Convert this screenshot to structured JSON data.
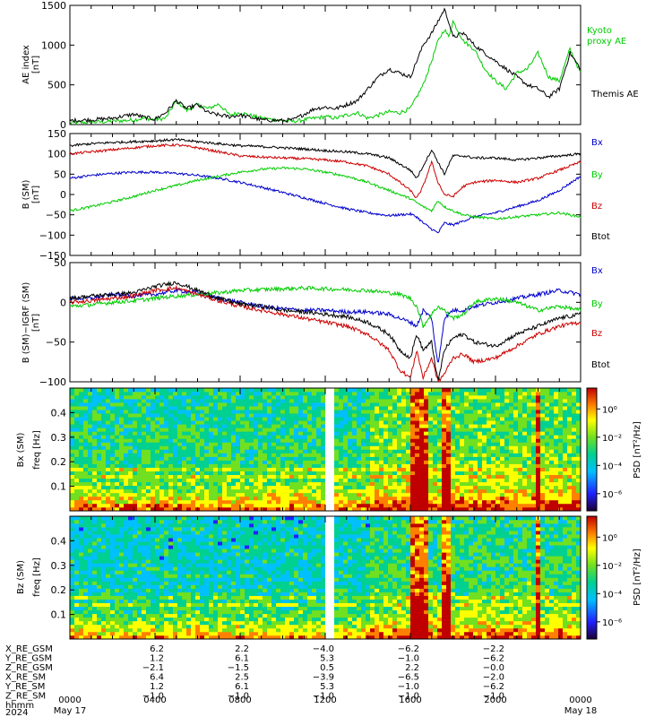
{
  "chart_data": [
    {
      "type": "line",
      "panel": "ae",
      "ylabel": [
        "AE index",
        "[nT]"
      ],
      "ylim": [
        0,
        1500
      ],
      "yticks": [
        0,
        500,
        1000,
        1500
      ],
      "xlim_hours": [
        0,
        24
      ],
      "series": [
        {
          "name": "Kyoto proxy AE",
          "color": "#00cc00",
          "x": [
            0,
            1,
            2,
            3,
            3.5,
            4,
            4.5,
            5,
            5.5,
            6,
            6.5,
            7,
            7.5,
            8,
            9,
            10,
            10.5,
            11,
            11.5,
            12,
            12.5,
            13,
            13.5,
            14,
            14.5,
            15,
            15.5,
            16,
            16.3,
            16.6,
            17,
            17.3,
            17.6,
            17.8,
            18,
            18.5,
            19,
            19.5,
            20,
            20.5,
            21,
            21.5,
            22,
            22.5,
            23,
            23.5,
            24
          ],
          "y": [
            20,
            30,
            40,
            60,
            80,
            60,
            80,
            300,
            180,
            250,
            200,
            260,
            120,
            150,
            80,
            50,
            40,
            60,
            80,
            100,
            80,
            120,
            150,
            80,
            120,
            160,
            150,
            200,
            350,
            500,
            800,
            1050,
            1200,
            1100,
            1300,
            1050,
            950,
            700,
            550,
            450,
            650,
            700,
            900,
            600,
            550,
            950,
            650
          ]
        },
        {
          "name": "Themis AE",
          "color": "#000000",
          "x": [
            0,
            1,
            2,
            3,
            3.5,
            4,
            4.5,
            5,
            5.5,
            6,
            6.5,
            7,
            7.5,
            8,
            9,
            10,
            10.5,
            11,
            11.5,
            12,
            12.5,
            13,
            13.5,
            14,
            14.5,
            15,
            15.5,
            16,
            16.3,
            16.6,
            17,
            17.3,
            17.6,
            17.8,
            18,
            18.5,
            19,
            19.5,
            20,
            20.5,
            21,
            21.5,
            22,
            22.5,
            23,
            23.5,
            24
          ],
          "y": [
            50,
            60,
            80,
            130,
            90,
            70,
            150,
            300,
            200,
            250,
            150,
            120,
            100,
            120,
            60,
            50,
            60,
            130,
            200,
            220,
            200,
            250,
            300,
            450,
            600,
            700,
            650,
            600,
            800,
            1000,
            1150,
            1300,
            1450,
            1300,
            1100,
            1150,
            1000,
            900,
            800,
            700,
            600,
            500,
            450,
            350,
            450,
            900,
            700
          ]
        }
      ]
    },
    {
      "type": "line",
      "panel": "bsm",
      "ylabel": [
        "B (SM)",
        "[nT]"
      ],
      "ylim": [
        -150,
        150
      ],
      "yticks": [
        150,
        100,
        50,
        0,
        -50,
        -100,
        -150
      ],
      "xlim_hours": [
        0,
        24
      ],
      "series": [
        {
          "name": "Bx",
          "color": "#0000cc",
          "x": [
            0,
            1,
            2,
            3,
            4,
            5,
            6,
            7,
            8,
            9,
            10,
            11,
            12,
            13,
            14,
            15,
            15.5,
            16,
            16.3,
            16.6,
            17,
            17.3,
            17.6,
            18,
            18.5,
            19,
            20,
            21,
            22,
            23,
            24
          ],
          "y": [
            40,
            47,
            52,
            55,
            55,
            52,
            47,
            40,
            30,
            18,
            5,
            -8,
            -22,
            -35,
            -45,
            -52,
            -50,
            -48,
            -55,
            -70,
            -85,
            -95,
            -70,
            -75,
            -65,
            -55,
            -45,
            -30,
            -15,
            10,
            45
          ]
        },
        {
          "name": "By",
          "color": "#00cc00",
          "x": [
            0,
            1,
            2,
            3,
            4,
            5,
            6,
            7,
            8,
            9,
            10,
            11,
            12,
            13,
            14,
            15,
            15.5,
            16,
            16.3,
            16.6,
            17,
            17.3,
            17.6,
            18,
            18.5,
            19,
            20,
            21,
            22,
            23,
            24
          ],
          "y": [
            -40,
            -30,
            -18,
            -5,
            10,
            22,
            35,
            45,
            55,
            62,
            65,
            63,
            55,
            45,
            30,
            10,
            0,
            -10,
            -20,
            -30,
            -40,
            -15,
            -30,
            -40,
            -50,
            -55,
            -60,
            -55,
            -50,
            -45,
            -55
          ]
        },
        {
          "name": "Bz",
          "color": "#cc0000",
          "x": [
            0,
            1,
            2,
            3,
            4,
            5,
            6,
            7,
            8,
            9,
            10,
            11,
            12,
            13,
            14,
            15,
            15.5,
            16,
            16.3,
            16.6,
            17,
            17.3,
            17.6,
            18,
            18.5,
            19,
            20,
            21,
            22,
            23,
            24
          ],
          "y": [
            100,
            105,
            110,
            115,
            120,
            122,
            115,
            105,
            95,
            92,
            90,
            88,
            85,
            80,
            70,
            50,
            30,
            10,
            -10,
            20,
            80,
            30,
            0,
            -5,
            20,
            30,
            35,
            30,
            40,
            60,
            80
          ]
        },
        {
          "name": "Btot",
          "color": "#000000",
          "x": [
            0,
            1,
            2,
            3,
            4,
            5,
            6,
            7,
            8,
            9,
            10,
            11,
            12,
            13,
            14,
            15,
            15.5,
            16,
            16.3,
            16.6,
            17,
            17.3,
            17.6,
            18,
            18.5,
            19,
            20,
            21,
            22,
            23,
            24
          ],
          "y": [
            120,
            125,
            128,
            130,
            132,
            135,
            130,
            125,
            120,
            118,
            115,
            112,
            108,
            105,
            100,
            90,
            75,
            60,
            40,
            70,
            110,
            80,
            50,
            95,
            95,
            90,
            90,
            85,
            90,
            95,
            100
          ]
        }
      ]
    },
    {
      "type": "line",
      "panel": "bdiff",
      "ylabel": [
        "B (SM)−IGRF (SM)",
        "[nT]"
      ],
      "ylim": [
        -100,
        50
      ],
      "yticks": [
        50,
        0,
        -50,
        -100
      ],
      "xlim_hours": [
        0,
        24
      ],
      "series": [
        {
          "name": "Bx",
          "color": "#0000cc",
          "x": [
            0,
            1,
            2,
            3,
            4,
            5,
            6,
            7,
            8,
            9,
            10,
            11,
            12,
            13,
            14,
            15,
            15.5,
            16,
            16.3,
            16.6,
            17,
            17.3,
            17.6,
            18,
            18.5,
            19,
            20,
            21,
            22,
            23,
            24
          ],
          "y": [
            5,
            5,
            10,
            8,
            10,
            15,
            12,
            5,
            0,
            -5,
            -8,
            -10,
            -10,
            -12,
            -12,
            -15,
            -20,
            -25,
            -30,
            -10,
            -20,
            -80,
            -20,
            -10,
            -10,
            -5,
            0,
            5,
            10,
            15,
            10
          ]
        },
        {
          "name": "By",
          "color": "#00cc00",
          "x": [
            0,
            1,
            2,
            3,
            4,
            5,
            6,
            7,
            8,
            9,
            10,
            11,
            12,
            13,
            14,
            15,
            15.5,
            16,
            16.3,
            16.6,
            17,
            17.3,
            17.6,
            18,
            18.5,
            19,
            20,
            21,
            22,
            23,
            24
          ],
          "y": [
            -5,
            -3,
            0,
            2,
            5,
            8,
            10,
            12,
            15,
            16,
            17,
            18,
            17,
            16,
            15,
            12,
            10,
            5,
            -5,
            -30,
            -15,
            -5,
            -10,
            -20,
            -15,
            0,
            5,
            0,
            -10,
            -5,
            -10
          ]
        },
        {
          "name": "Bz",
          "color": "#cc0000",
          "x": [
            0,
            1,
            2,
            3,
            4,
            5,
            6,
            7,
            8,
            9,
            10,
            11,
            12,
            13,
            14,
            15,
            15.5,
            16,
            16.3,
            16.6,
            17,
            17.3,
            17.6,
            18,
            18.5,
            19,
            20,
            21,
            22,
            23,
            24
          ],
          "y": [
            0,
            2,
            5,
            8,
            15,
            18,
            10,
            2,
            -5,
            -10,
            -15,
            -20,
            -25,
            -30,
            -40,
            -60,
            -85,
            -95,
            -60,
            -95,
            -70,
            -100,
            -90,
            -70,
            -65,
            -75,
            -70,
            -55,
            -40,
            -30,
            -25
          ]
        },
        {
          "name": "Btot",
          "color": "#000000",
          "x": [
            0,
            1,
            2,
            3,
            4,
            5,
            6,
            7,
            8,
            9,
            10,
            11,
            12,
            13,
            14,
            15,
            15.5,
            16,
            16.3,
            16.6,
            17,
            17.3,
            17.6,
            18,
            18.5,
            19,
            20,
            21,
            22,
            23,
            24
          ],
          "y": [
            5,
            8,
            10,
            12,
            20,
            25,
            15,
            5,
            -2,
            -5,
            -10,
            -12,
            -15,
            -18,
            -25,
            -40,
            -60,
            -70,
            -40,
            -60,
            -50,
            -100,
            -60,
            -45,
            -40,
            -50,
            -55,
            -40,
            -30,
            -20,
            -15
          ]
        }
      ]
    },
    {
      "type": "heatmap",
      "panel": "bx_psd",
      "ylabel": [
        "Bx (SM)",
        "freq [Hz]"
      ],
      "ylim": [
        0,
        0.5
      ],
      "yticks": [
        0.1,
        0.2,
        0.3,
        0.4
      ],
      "colorbar_label": "PSD [nT²/Hz]",
      "colorbar_ticks": [
        "10⁰",
        "10⁻²",
        "10⁻⁴",
        "10⁻⁶"
      ],
      "data_gaps_hours": [
        [
          3.97,
          4.03
        ],
        [
          12.05,
          12.35
        ],
        [
          12.55,
          12.65
        ],
        [
          22.28,
          22.33
        ]
      ],
      "burst_intervals_hours": [
        [
          16.0,
          16.8
        ],
        [
          17.4,
          17.8
        ],
        [
          21.8,
          22.0
        ]
      ]
    },
    {
      "type": "heatmap",
      "panel": "bz_psd",
      "ylabel": [
        "Bz (SM)",
        "freq [Hz]"
      ],
      "ylim": [
        0,
        0.5
      ],
      "yticks": [
        0.1,
        0.2,
        0.3,
        0.4
      ],
      "colorbar_label": "PSD [nT²/Hz]",
      "colorbar_ticks": [
        "10⁰",
        "10⁻²",
        "10⁻⁴",
        "10⁻⁶"
      ],
      "data_gaps_hours": [
        [
          3.97,
          4.03
        ],
        [
          12.05,
          12.35
        ],
        [
          12.55,
          12.65
        ],
        [
          22.28,
          22.33
        ]
      ],
      "burst_intervals_hours": [
        [
          16.0,
          16.8
        ],
        [
          17.4,
          17.8
        ],
        [
          21.8,
          22.0
        ]
      ]
    }
  ],
  "ephemeris": {
    "labels": [
      "X_RE_GSM",
      "Y_RE_GSM",
      "Z_RE_GSM",
      "X_RE_SM",
      "Y_RE_SM",
      "Z_RE_SM"
    ],
    "hours": [
      4,
      8,
      12,
      16,
      20
    ],
    "rows": [
      [
        "6.2",
        "2.2",
        "−4.0",
        "−6.2",
        "−2.2"
      ],
      [
        "1.2",
        "6.1",
        "5.3",
        "−1.0",
        "−6.2"
      ],
      [
        "−2.1",
        "−1.5",
        "0.5",
        "2.2",
        "−0.0"
      ],
      [
        "6.4",
        "2.5",
        "−3.9",
        "−6.5",
        "−2.0"
      ],
      [
        "1.2",
        "6.1",
        "5.3",
        "−1.0",
        "−6.2"
      ],
      [
        "−1.0",
        "−1.0",
        "−1.0",
        "−1.0",
        "−1.0"
      ]
    ]
  },
  "time_axis": {
    "row_label_1": "hhmm",
    "row_label_2": "2024",
    "ticks": [
      {
        "h": 0,
        "label": "0000",
        "date": "May 17"
      },
      {
        "h": 4,
        "label": "0400",
        "date": ""
      },
      {
        "h": 8,
        "label": "0800",
        "date": ""
      },
      {
        "h": 12,
        "label": "1200",
        "date": ""
      },
      {
        "h": 16,
        "label": "1600",
        "date": ""
      },
      {
        "h": 20,
        "label": "2000",
        "date": ""
      },
      {
        "h": 24,
        "label": "0000",
        "date": "May 18"
      }
    ]
  },
  "colors": {
    "bx": "#0000cc",
    "by": "#00cc00",
    "bz": "#cc0000",
    "btot": "#000000",
    "kyoto": "#00cc00"
  }
}
